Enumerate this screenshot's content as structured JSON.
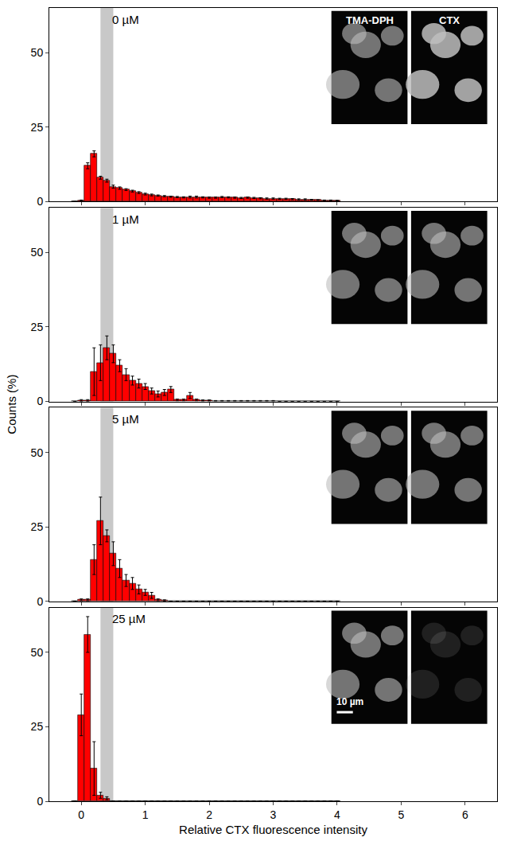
{
  "chart_data": [
    {
      "type": "histogram",
      "title": "0 µM",
      "bins": [
        -0.15,
        -0.05,
        0.05,
        0.15,
        0.25,
        0.35,
        0.45,
        0.55,
        0.65,
        0.75,
        0.85,
        0.95,
        1.05,
        1.15,
        1.25,
        1.35,
        1.45,
        1.55,
        1.65,
        1.75,
        1.85,
        1.95,
        2.05,
        2.15,
        2.25,
        2.35,
        2.45,
        2.55,
        2.65,
        2.75,
        2.85,
        2.95,
        3.05,
        3.15,
        3.25,
        3.35,
        3.45,
        3.55,
        3.65,
        3.75,
        3.85,
        3.95,
        4.05
      ],
      "values": [
        0,
        0.3,
        12,
        16,
        8,
        7,
        5,
        4.5,
        4,
        3.5,
        3,
        2.5,
        2.2,
        2,
        1.8,
        1.6,
        1.5,
        1.4,
        1.5,
        1.5,
        1.4,
        1.3,
        1.3,
        1.5,
        1.4,
        1.3,
        1.2,
        1.3,
        1.2,
        1.1,
        1,
        1,
        0.9,
        0.9,
        0.8,
        0.7,
        0.7,
        0.6,
        0.5,
        0.4,
        0.4,
        0.3
      ],
      "errors": [
        0,
        0.2,
        1,
        1,
        0.5,
        0.5,
        0.5,
        0.4,
        0.3,
        0.3,
        0.3,
        0.3,
        0.3,
        0.2,
        0.2,
        0.2,
        0.2,
        0.2,
        0.3,
        0.3,
        0.2,
        0.2,
        0.2,
        0.2,
        0.2,
        0.2,
        0.2,
        0.2,
        0.2,
        0.2,
        0.2,
        0.2,
        0.2,
        0.2,
        0.2,
        0.2,
        0.2,
        0.1,
        0.1,
        0.1,
        0.1,
        0.1
      ],
      "color": "#ff0000",
      "xlim": [
        -0.5,
        6.5
      ],
      "xticks": [
        0,
        1,
        2,
        3,
        4,
        5,
        6
      ],
      "ylim": [
        0,
        65
      ],
      "yticks": [
        0,
        25,
        50
      ],
      "shaded_range": [
        0.3,
        0.5
      ],
      "tick_labels": "y",
      "annotations": [
        "TMA-DPH",
        "CTX"
      ]
    },
    {
      "type": "histogram",
      "title": "1 µM",
      "bins": [
        -0.15,
        -0.05,
        0.05,
        0.15,
        0.25,
        0.35,
        0.45,
        0.55,
        0.65,
        0.75,
        0.85,
        0.95,
        1.05,
        1.15,
        1.25,
        1.35,
        1.45,
        1.55,
        1.65,
        1.75,
        1.85,
        1.95,
        2.05,
        2.15,
        2.25,
        2.35,
        2.45,
        2.55,
        2.65,
        2.75,
        2.85,
        2.95,
        3.05,
        3.15,
        3.25,
        3.35,
        3.45,
        3.55,
        3.65,
        3.75,
        3.85,
        3.95,
        4.05
      ],
      "values": [
        0,
        0.3,
        0.3,
        10,
        13,
        18,
        16,
        12,
        9,
        7,
        6,
        5,
        3.5,
        2.5,
        3,
        4,
        0.5,
        0.5,
        2,
        0.5,
        0.3,
        0.3,
        0.2,
        0.2,
        0.2,
        0.2,
        0.2,
        0.2,
        0.2,
        0.2,
        0.2,
        0.2,
        0,
        0,
        0,
        0,
        0,
        0,
        0,
        0,
        0,
        0
      ],
      "errors": [
        0,
        0.3,
        0.3,
        8,
        6,
        4,
        3,
        2,
        2,
        1.5,
        1.5,
        1,
        1,
        1,
        1,
        1,
        0.3,
        0.3,
        1,
        0.3,
        0.2,
        0.2,
        0.1,
        0.1,
        0.1,
        0.1,
        0.1,
        0.1,
        0.1,
        0.1,
        0.1,
        0.1,
        0,
        0,
        0,
        0,
        0,
        0,
        0,
        0,
        0,
        0
      ],
      "color": "#ff0000",
      "xlim": [
        -0.5,
        6.5
      ],
      "xticks": [
        0,
        1,
        2,
        3,
        4,
        5,
        6
      ],
      "ylim": [
        0,
        65
      ],
      "yticks": [
        0,
        25,
        50
      ],
      "shaded_range": [
        0.3,
        0.5
      ],
      "tick_labels": "y"
    },
    {
      "type": "histogram",
      "title": "5 µM",
      "bins": [
        -0.15,
        -0.05,
        0.05,
        0.15,
        0.25,
        0.35,
        0.45,
        0.55,
        0.65,
        0.75,
        0.85,
        0.95,
        1.05,
        1.15,
        1.25,
        1.35,
        1.45,
        1.55,
        1.65,
        1.75,
        1.85,
        1.95,
        2.05,
        2.15,
        2.25,
        2.35,
        2.45,
        2.55,
        2.65,
        2.75,
        2.85,
        2.95,
        3.05,
        3.15,
        3.25,
        3.35,
        3.45,
        3.55,
        3.65,
        3.75,
        3.85,
        3.95,
        4.05
      ],
      "values": [
        0,
        0.5,
        0.5,
        14,
        27,
        22,
        16,
        11,
        7,
        6,
        4,
        3,
        2,
        0.5,
        0.3,
        0,
        0,
        0,
        0,
        0,
        0,
        0,
        0,
        0,
        0,
        0,
        0,
        0,
        0,
        0,
        0,
        0,
        0,
        0,
        0,
        0,
        0,
        0,
        0,
        0,
        0,
        0
      ],
      "errors": [
        0,
        0.3,
        0.3,
        5,
        8,
        2,
        4,
        3,
        2,
        2,
        1.5,
        1,
        1,
        0.3,
        0.2,
        0,
        0,
        0,
        0,
        0,
        0,
        0,
        0,
        0,
        0,
        0,
        0,
        0,
        0,
        0,
        0,
        0,
        0,
        0,
        0,
        0,
        0,
        0,
        0,
        0,
        0,
        0
      ],
      "color": "#ff0000",
      "xlim": [
        -0.5,
        6.5
      ],
      "xticks": [
        0,
        1,
        2,
        3,
        4,
        5,
        6
      ],
      "ylim": [
        0,
        65
      ],
      "yticks": [
        0,
        25,
        50
      ],
      "shaded_range": [
        0.3,
        0.5
      ],
      "tick_labels": "y"
    },
    {
      "type": "histogram",
      "title": "25 µM",
      "bins": [
        -0.15,
        -0.05,
        0.05,
        0.15,
        0.25,
        0.35,
        0.45,
        0.55,
        0.65,
        0.75,
        0.85,
        0.95,
        1.05,
        1.15,
        1.25,
        1.35,
        1.45,
        1.55,
        1.65,
        1.75,
        1.85,
        1.95,
        2.05,
        2.15,
        2.25,
        2.35,
        2.45,
        2.55,
        2.65,
        2.75,
        2.85,
        2.95,
        3.05,
        3.15,
        3.25,
        3.35,
        3.45,
        3.55,
        3.65,
        3.75,
        3.85,
        3.95,
        4.05
      ],
      "values": [
        0,
        29,
        56,
        11,
        2,
        1,
        0,
        0,
        0,
        0,
        0,
        0,
        0,
        0,
        0,
        0,
        0,
        0,
        0,
        0,
        0,
        0,
        0,
        0,
        0,
        0,
        0,
        0,
        0,
        0,
        0,
        0,
        0,
        0,
        0,
        0,
        0,
        0,
        0,
        0,
        0,
        0
      ],
      "errors": [
        0,
        7,
        6,
        9,
        1,
        0.5,
        0,
        0,
        0,
        0,
        0,
        0,
        0,
        0,
        0,
        0,
        0,
        0,
        0,
        0,
        0,
        0,
        0,
        0,
        0,
        0,
        0,
        0,
        0,
        0,
        0,
        0,
        0,
        0,
        0,
        0,
        0,
        0,
        0,
        0,
        0,
        0
      ],
      "color": "#ff0000",
      "xlim": [
        -0.5,
        6.5
      ],
      "xticks": [
        0,
        1,
        2,
        3,
        4,
        5,
        6
      ],
      "ylim": [
        0,
        65
      ],
      "yticks": [
        0,
        25,
        50
      ],
      "shaded_range": [
        0.3,
        0.5
      ],
      "xlabel": "Relative CTX fluorescence intensity",
      "annotations": [
        "10 µm"
      ]
    }
  ],
  "ylabel": "Counts (%)"
}
